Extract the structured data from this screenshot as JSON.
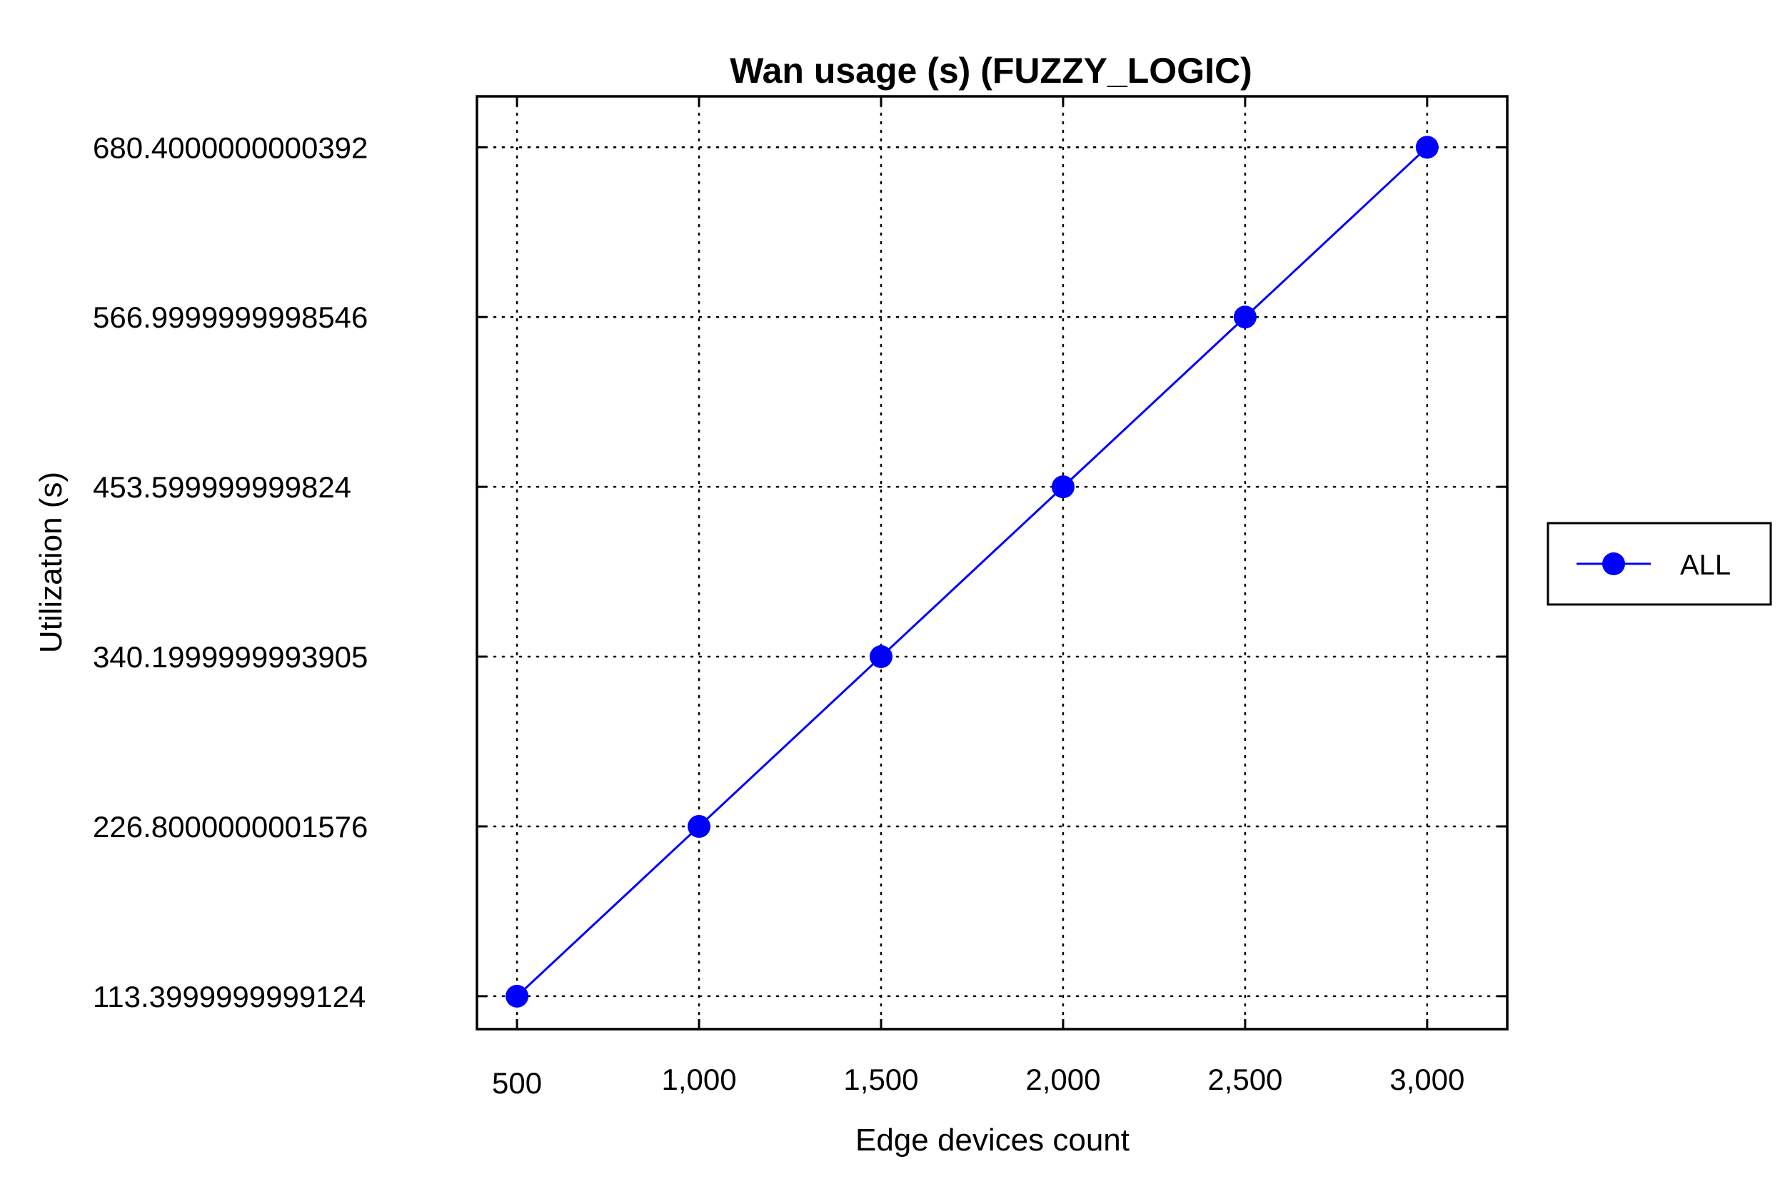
{
  "chart_data": {
    "type": "line",
    "title": "Wan usage (s) (FUZZY_LOGIC)",
    "xlabel": "Edge devices count",
    "ylabel": "Utilization (s)",
    "x_ticks": [
      {
        "value": 500,
        "label": "500"
      },
      {
        "value": 1000,
        "label": "1,000"
      },
      {
        "value": 1500,
        "label": "1,500"
      },
      {
        "value": 2000,
        "label": "2,000"
      },
      {
        "value": 2500,
        "label": "2,500"
      },
      {
        "value": 3000,
        "label": "3,000"
      }
    ],
    "y_ticks": [
      {
        "value": 113.3999999999124,
        "label": "113.3999999999124"
      },
      {
        "value": 226.8000000001576,
        "label": "226.8000000001576"
      },
      {
        "value": 340.1999999993905,
        "label": "340.1999999993905"
      },
      {
        "value": 453.599999999824,
        "label": "453.599999999824"
      },
      {
        "value": 566.9999999998546,
        "label": "566.9999999998546"
      },
      {
        "value": 680.4000000000392,
        "label": "680.4000000000392"
      }
    ],
    "xlim": [
      390,
      3220
    ],
    "ylim": [
      91.4,
      714.4
    ],
    "grid": true,
    "legend_position": "right",
    "series": [
      {
        "name": "ALL",
        "color": "#0000ff",
        "marker": "circle",
        "x": [
          500,
          1000,
          1500,
          2000,
          2500,
          3000
        ],
        "y": [
          113.3999999999124,
          226.8000000001576,
          340.1999999993905,
          453.599999999824,
          566.9999999998546,
          680.4000000000392
        ]
      }
    ]
  }
}
